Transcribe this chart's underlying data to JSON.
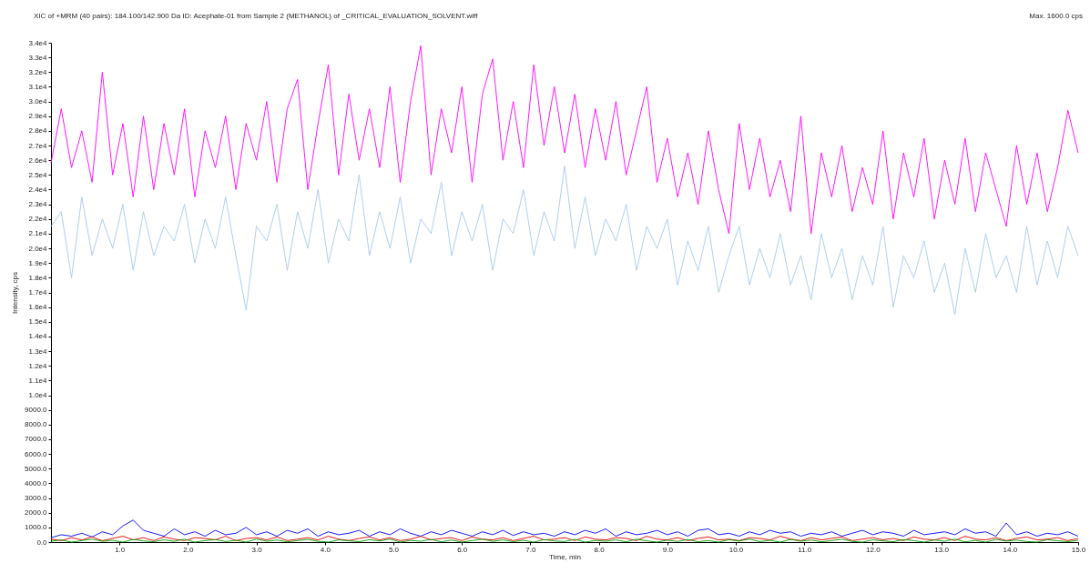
{
  "chart_data": {
    "type": "line",
    "title": "XIC of +MRM (40 pairs): 184.100/142.900 Da ID: Acephate-01 from Sample 2 (METHANOL) of _CRITICAL_EVALUATION_SOLVENT.wiff",
    "xlabel": "Time, min",
    "ylabel": "Intensity, cps",
    "annotations": [
      "Max. 1600.0 cps"
    ],
    "x": [
      0,
      0.15,
      0.3,
      0.45,
      0.6,
      0.75,
      0.9,
      1.05,
      1.2,
      1.35,
      1.5,
      1.65,
      1.8,
      1.95,
      2.1,
      2.25,
      2.4,
      2.55,
      2.7,
      2.85,
      3,
      3.15,
      3.3,
      3.45,
      3.6,
      3.75,
      3.9,
      4.05,
      4.2,
      4.35,
      4.5,
      4.65,
      4.8,
      4.95,
      5.1,
      5.25,
      5.4,
      5.55,
      5.7,
      5.85,
      6,
      6.15,
      6.3,
      6.45,
      6.6,
      6.75,
      6.9,
      7.05,
      7.2,
      7.35,
      7.5,
      7.65,
      7.8,
      7.95,
      8.1,
      8.25,
      8.4,
      8.55,
      8.7,
      8.85,
      9,
      9.15,
      9.3,
      9.45,
      9.6,
      9.75,
      9.9,
      10.05,
      10.2,
      10.35,
      10.5,
      10.65,
      10.8,
      10.95,
      11.1,
      11.25,
      11.4,
      11.55,
      11.7,
      11.85,
      12,
      12.15,
      12.3,
      12.45,
      12.6,
      12.75,
      12.9,
      13.05,
      13.2,
      13.35,
      13.5,
      13.65,
      13.8,
      13.95,
      14.1,
      14.25,
      14.4,
      14.55,
      14.7,
      14.85,
      15
    ],
    "series": [
      {
        "color": "#ff00ff",
        "values": [
          25800,
          29500,
          25500,
          28000,
          24500,
          32000,
          25000,
          28500,
          23500,
          29000,
          24000,
          28500,
          25000,
          29500,
          23500,
          28000,
          25500,
          29000,
          24000,
          28500,
          26000,
          30000,
          24500,
          29500,
          31500,
          24000,
          28500,
          32500,
          25000,
          30500,
          26000,
          29500,
          25500,
          31000,
          24500,
          30000,
          33800,
          25000,
          29500,
          26500,
          31000,
          24500,
          30500,
          32900,
          26000,
          30000,
          25500,
          32500,
          27000,
          31000,
          26500,
          30500,
          25500,
          29500,
          26000,
          30000,
          25000,
          28000,
          31000,
          24500,
          27500,
          23500,
          26500,
          23000,
          28000,
          24000,
          21000,
          28500,
          24000,
          27500,
          23500,
          26000,
          22500,
          29000,
          21000,
          26500,
          23500,
          27000,
          22500,
          25500,
          23000,
          28000,
          22000,
          26500,
          23500,
          27500,
          22000,
          26000,
          23000,
          27500,
          22500,
          26500,
          24000,
          21500,
          27000,
          23000,
          26500,
          22500,
          25500,
          29400,
          26500
        ]
      },
      {
        "color": "#a8c8ec",
        "values": [
          21500,
          22500,
          18000,
          23500,
          19500,
          22000,
          20000,
          23000,
          18500,
          22500,
          19500,
          21500,
          20500,
          23000,
          19000,
          22000,
          20000,
          23500,
          19500,
          15800,
          21500,
          20500,
          23000,
          18500,
          22500,
          20000,
          24000,
          19000,
          22000,
          20500,
          25000,
          19500,
          22500,
          20000,
          23500,
          19000,
          22000,
          21000,
          24500,
          19500,
          22500,
          20500,
          23000,
          18500,
          22000,
          21000,
          24000,
          19500,
          22500,
          20500,
          25600,
          20000,
          23500,
          19500,
          22000,
          20500,
          23000,
          18500,
          21500,
          20000,
          22000,
          17500,
          20500,
          18500,
          21500,
          17000,
          19500,
          21500,
          17500,
          20000,
          18000,
          21000,
          17500,
          19500,
          16500,
          21000,
          18000,
          20000,
          16500,
          19500,
          17500,
          21500,
          16000,
          19500,
          18000,
          20500,
          17000,
          19000,
          15500,
          20000,
          17000,
          21000,
          18000,
          19500,
          17000,
          21500,
          17500,
          20500,
          18000,
          21500,
          19500
        ]
      },
      {
        "color": "#0000ff",
        "values": [
          300,
          500,
          400,
          600,
          350,
          700,
          500,
          1100,
          1500,
          800,
          600,
          400,
          900,
          500,
          700,
          400,
          800,
          500,
          600,
          1000,
          500,
          700,
          400,
          800,
          600,
          900,
          400,
          700,
          500,
          600,
          800,
          400,
          700,
          500,
          900,
          600,
          400,
          700,
          500,
          800,
          600,
          400,
          700,
          500,
          800,
          450,
          700,
          500,
          600,
          400,
          700,
          500,
          800,
          600,
          900,
          400,
          700,
          500,
          600,
          800,
          500,
          700,
          400,
          800,
          900,
          500,
          600,
          400,
          700,
          500,
          800,
          600,
          700,
          400,
          600,
          500,
          700,
          400,
          600,
          800,
          500,
          700,
          600,
          400,
          800,
          500,
          600,
          700,
          500,
          900,
          600,
          700,
          400,
          1300,
          500,
          700,
          400,
          600,
          500,
          700,
          400
        ]
      },
      {
        "color": "#e00000",
        "values": [
          200,
          100,
          300,
          150,
          350,
          100,
          250,
          400,
          150,
          300,
          100,
          350,
          200,
          100,
          300,
          250,
          150,
          400,
          100,
          250,
          300,
          150,
          350,
          100,
          200,
          300,
          150,
          400,
          200,
          100,
          250,
          350,
          150,
          300,
          100,
          200,
          400,
          150,
          250,
          300,
          100,
          350,
          200,
          150,
          300,
          100,
          250,
          400,
          150,
          200,
          300,
          100,
          350,
          200,
          150,
          300,
          250,
          100,
          400,
          200,
          150,
          300,
          100,
          250,
          350,
          150,
          200,
          100,
          300,
          250,
          150,
          400,
          200,
          100,
          300,
          150,
          250,
          350,
          100,
          200,
          300,
          150,
          250,
          100,
          350,
          200,
          150,
          300,
          100,
          400,
          200,
          150,
          300,
          100,
          250,
          350,
          150,
          200,
          300,
          100,
          250
        ]
      },
      {
        "color": "#00a000",
        "values": [
          50,
          150,
          0,
          100,
          200,
          50,
          120,
          0,
          180,
          80,
          30,
          150,
          60,
          200,
          0,
          100,
          170,
          40,
          120,
          0,
          200,
          60,
          140,
          20,
          100,
          180,
          50,
          0,
          150,
          90,
          30,
          160,
          80,
          200,
          0,
          110,
          60,
          180,
          20,
          140,
          0,
          100,
          200,
          50,
          150,
          30,
          120,
          0,
          170,
          80,
          40,
          190,
          0,
          110,
          60,
          150,
          20,
          200,
          80,
          0,
          130,
          50,
          170,
          30,
          100,
          0,
          160,
          70,
          200,
          40,
          120,
          0,
          180,
          60,
          140,
          20,
          100,
          200,
          50,
          0,
          150,
          80,
          30,
          170,
          100,
          0,
          140,
          60,
          200,
          20,
          110,
          0,
          180,
          70,
          130,
          40,
          0,
          160,
          90,
          30,
          120
        ]
      }
    ],
    "xlim": [
      0,
      15
    ],
    "ylim": [
      0,
      34000
    ],
    "xticks": [
      {
        "value": 1,
        "label": "1.0"
      },
      {
        "value": 2,
        "label": "2.0"
      },
      {
        "value": 3,
        "label": "3.0"
      },
      {
        "value": 4,
        "label": "4.0"
      },
      {
        "value": 5,
        "label": "5.0"
      },
      {
        "value": 6,
        "label": "6.0"
      },
      {
        "value": 7,
        "label": "7.0"
      },
      {
        "value": 8,
        "label": "8.0"
      },
      {
        "value": 9,
        "label": "9.0"
      },
      {
        "value": 10,
        "label": "10.0"
      },
      {
        "value": 11,
        "label": "11.0"
      },
      {
        "value": 12,
        "label": "12.0"
      },
      {
        "value": 13,
        "label": "13.0"
      },
      {
        "value": 14,
        "label": "14.0"
      },
      {
        "value": 15,
        "label": "15.0"
      }
    ],
    "yticks": [
      {
        "value": 0,
        "label": "0.0"
      },
      {
        "value": 1000,
        "label": "1000.0"
      },
      {
        "value": 2000,
        "label": "2000.0"
      },
      {
        "value": 3000,
        "label": "3000.0"
      },
      {
        "value": 4000,
        "label": "4000.0"
      },
      {
        "value": 5000,
        "label": "5000.0"
      },
      {
        "value": 6000,
        "label": "6000.0"
      },
      {
        "value": 7000,
        "label": "7000.0"
      },
      {
        "value": 8000,
        "label": "8000.0"
      },
      {
        "value": 9000,
        "label": "9000.0"
      },
      {
        "value": 10000,
        "label": "1.0e4"
      },
      {
        "value": 11000,
        "label": "1.1e4"
      },
      {
        "value": 12000,
        "label": "1.2e4"
      },
      {
        "value": 13000,
        "label": "1.3e4"
      },
      {
        "value": 14000,
        "label": "1.4e4"
      },
      {
        "value": 15000,
        "label": "1.5e4"
      },
      {
        "value": 16000,
        "label": "1.6e4"
      },
      {
        "value": 17000,
        "label": "1.7e4"
      },
      {
        "value": 18000,
        "label": "1.8e4"
      },
      {
        "value": 19000,
        "label": "1.9e4"
      },
      {
        "value": 20000,
        "label": "2.0e4"
      },
      {
        "value": 21000,
        "label": "2.1e4"
      },
      {
        "value": 22000,
        "label": "2.2e4"
      },
      {
        "value": 23000,
        "label": "2.3e4"
      },
      {
        "value": 24000,
        "label": "2.4e4"
      },
      {
        "value": 25000,
        "label": "2.5e4"
      },
      {
        "value": 26000,
        "label": "2.6e4"
      },
      {
        "value": 27000,
        "label": "2.7e4"
      },
      {
        "value": 28000,
        "label": "2.8e4"
      },
      {
        "value": 29000,
        "label": "2.9e4"
      },
      {
        "value": 30000,
        "label": "3.0e4"
      },
      {
        "value": 31000,
        "label": "3.1e4"
      },
      {
        "value": 32000,
        "label": "3.2e4"
      },
      {
        "value": 33000,
        "label": "3.3e4"
      },
      {
        "value": 34000,
        "label": "3.4e4"
      }
    ]
  }
}
